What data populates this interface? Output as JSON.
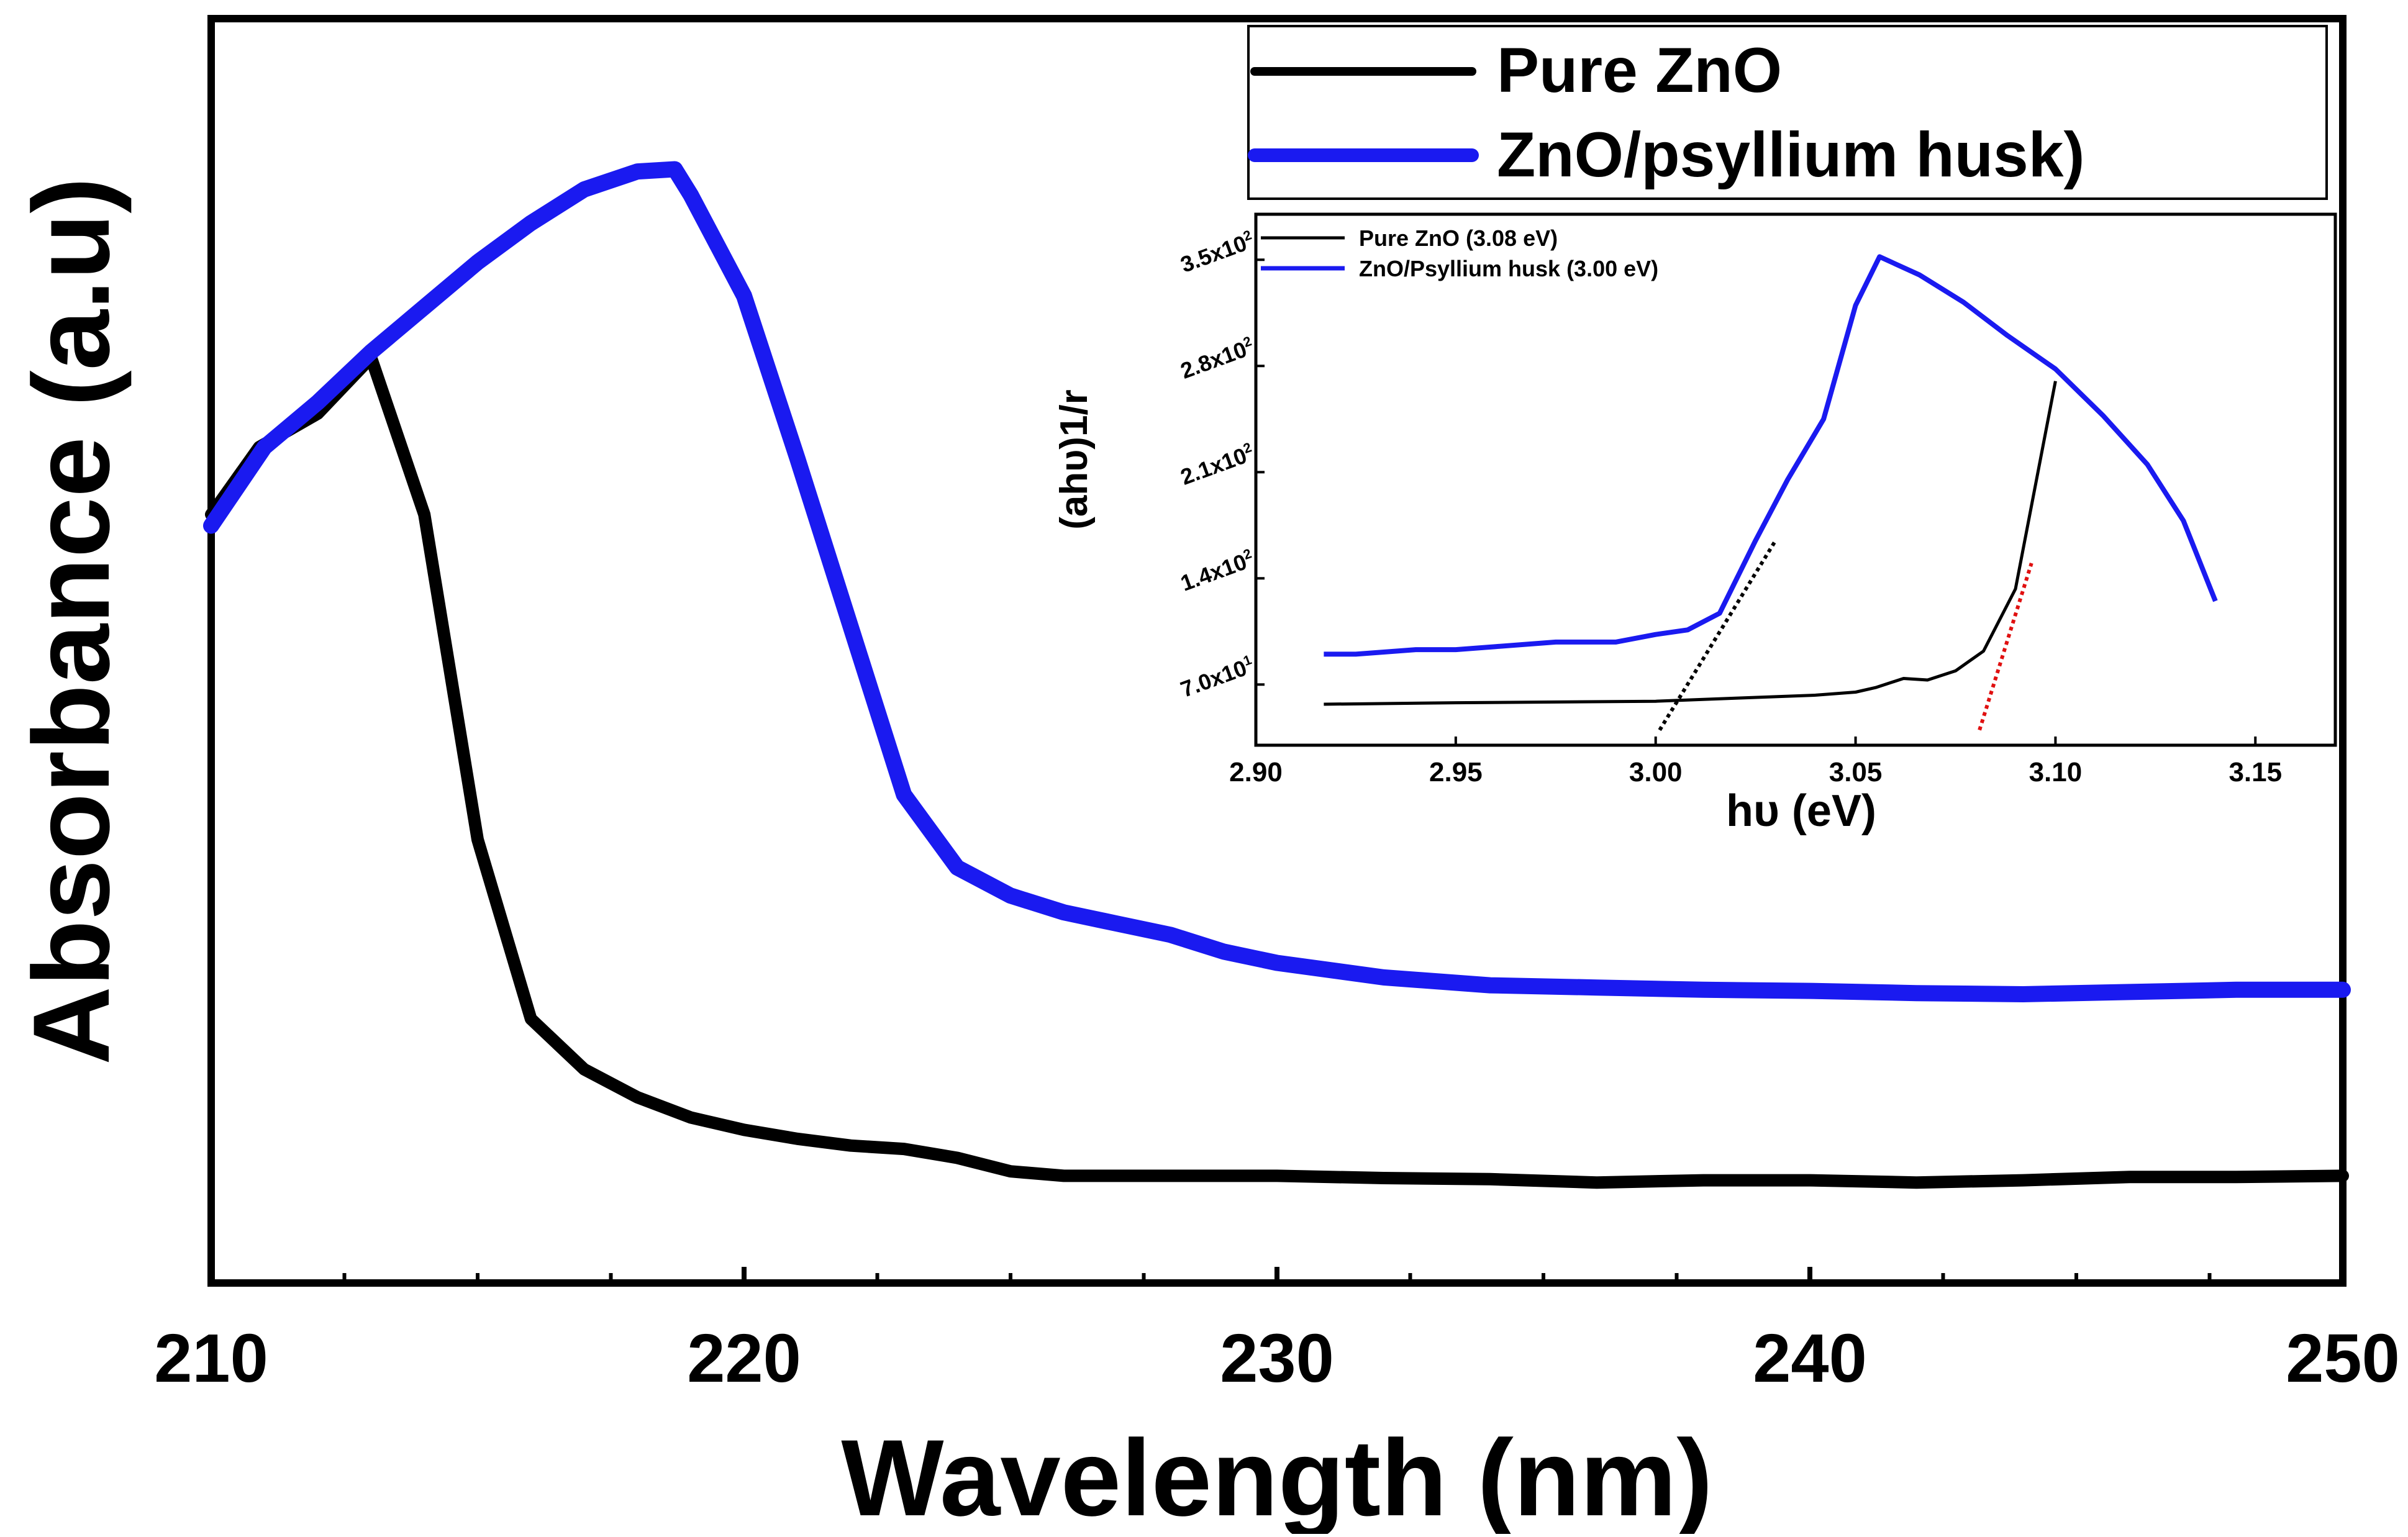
{
  "colors": {
    "pure_zno": "#000000",
    "zno_psyllium": "#1a1af0",
    "tangent_pure": "#e01010",
    "tangent_psyllium": "#000000",
    "axis": "#000000"
  },
  "chart_data": [
    {
      "type": "line",
      "role": "main",
      "title": "",
      "xlabel": "Wavelength (nm)",
      "ylabel": "Absorbance (a.u)",
      "xlim": [
        210,
        250
      ],
      "ylim": [
        0,
        1.0
      ],
      "xticks": [
        210,
        220,
        230,
        240,
        250
      ],
      "x_tick_labels": [
        "210",
        "220",
        "230",
        "240",
        "250"
      ],
      "legend_position": "top-right",
      "series": [
        {
          "name": "Pure ZnO",
          "x": [
            210,
            210.9,
            212,
            213,
            214,
            215,
            216,
            217,
            218,
            219,
            220,
            221,
            222,
            223,
            224,
            225,
            226,
            228,
            230,
            232,
            234,
            236,
            238,
            240,
            242,
            244,
            246,
            248,
            250
          ],
          "y": [
            0.71,
            0.77,
            0.8,
            0.85,
            0.71,
            0.42,
            0.26,
            0.215,
            0.19,
            0.172,
            0.161,
            0.153,
            0.147,
            0.144,
            0.136,
            0.124,
            0.12,
            0.12,
            0.12,
            0.118,
            0.117,
            0.114,
            0.116,
            0.116,
            0.114,
            0.116,
            0.119,
            0.119,
            0.12
          ]
        },
        {
          "name": "ZnO/psyllium husk)",
          "x": [
            210,
            211,
            212,
            213,
            214,
            215,
            216,
            217,
            218,
            218.7,
            219,
            220,
            221,
            222,
            223,
            224,
            225,
            226,
            227,
            228,
            229,
            230,
            232,
            234,
            236,
            238,
            240,
            242,
            244,
            246,
            248,
            250
          ],
          "y": [
            0.7,
            0.77,
            0.81,
            0.855,
            0.895,
            0.935,
            0.97,
            1.0,
            1.016,
            1.018,
            0.995,
            0.905,
            0.76,
            0.61,
            0.46,
            0.395,
            0.37,
            0.355,
            0.345,
            0.335,
            0.32,
            0.31,
            0.297,
            0.29,
            0.288,
            0.286,
            0.285,
            0.283,
            0.282,
            0.284,
            0.286,
            0.286
          ]
        }
      ]
    },
    {
      "type": "line",
      "role": "inset",
      "title": "",
      "xlabel": "hυ (eV)",
      "ylabel": "(ahυ)1/r",
      "xlim": [
        2.9,
        3.17
      ],
      "ylim": [
        30,
        380
      ],
      "xticks": [
        2.9,
        2.95,
        3.0,
        3.05,
        3.1,
        3.15
      ],
      "x_tick_labels": [
        "2.90",
        "2.95",
        "3.00",
        "3.05",
        "3.10",
        "3.15"
      ],
      "yticks": [
        70,
        140,
        210,
        280,
        350
      ],
      "y_tick_labels": [
        {
          "mantissa": "7.0x10",
          "exp": "1"
        },
        {
          "mantissa": "1.4x10",
          "exp": "2"
        },
        {
          "mantissa": "2.1x10",
          "exp": "2"
        },
        {
          "mantissa": "2.8x10",
          "exp": "2"
        },
        {
          "mantissa": "3.5x10",
          "exp": "2"
        }
      ],
      "legend_position": "top-left",
      "series": [
        {
          "name": "Pure ZnO (3.08 eV)",
          "x": [
            2.917,
            2.95,
            3.0,
            3.02,
            3.04,
            3.05,
            3.055,
            3.062,
            3.068,
            3.075,
            3.082,
            3.09,
            3.1
          ],
          "y": [
            57,
            58,
            59,
            61,
            63,
            65,
            68,
            74,
            73,
            79,
            92,
            133,
            270
          ]
        },
        {
          "name": "ZnO/Psyllium husk (3.00 eV)",
          "x": [
            2.917,
            2.925,
            2.94,
            2.95,
            2.96,
            2.975,
            2.99,
            3.0,
            3.008,
            3.016,
            3.025,
            3.033,
            3.042,
            3.05,
            3.056,
            3.066,
            3.077,
            3.088,
            3.1,
            3.112,
            3.123,
            3.132,
            3.14
          ],
          "y": [
            90,
            90,
            93,
            93,
            95,
            98,
            98,
            103,
            106,
            117,
            165,
            205,
            245,
            320,
            352,
            340,
            322,
            300,
            278,
            247,
            215,
            178,
            125
          ]
        }
      ],
      "tangents": [
        {
          "name": "pure_zno_tangent",
          "x": [
            3.081,
            3.094
          ],
          "y": [
            40,
            150
          ]
        },
        {
          "name": "psyllium_tangent",
          "x": [
            3.001,
            3.03
          ],
          "y": [
            40,
            165
          ]
        }
      ]
    }
  ]
}
